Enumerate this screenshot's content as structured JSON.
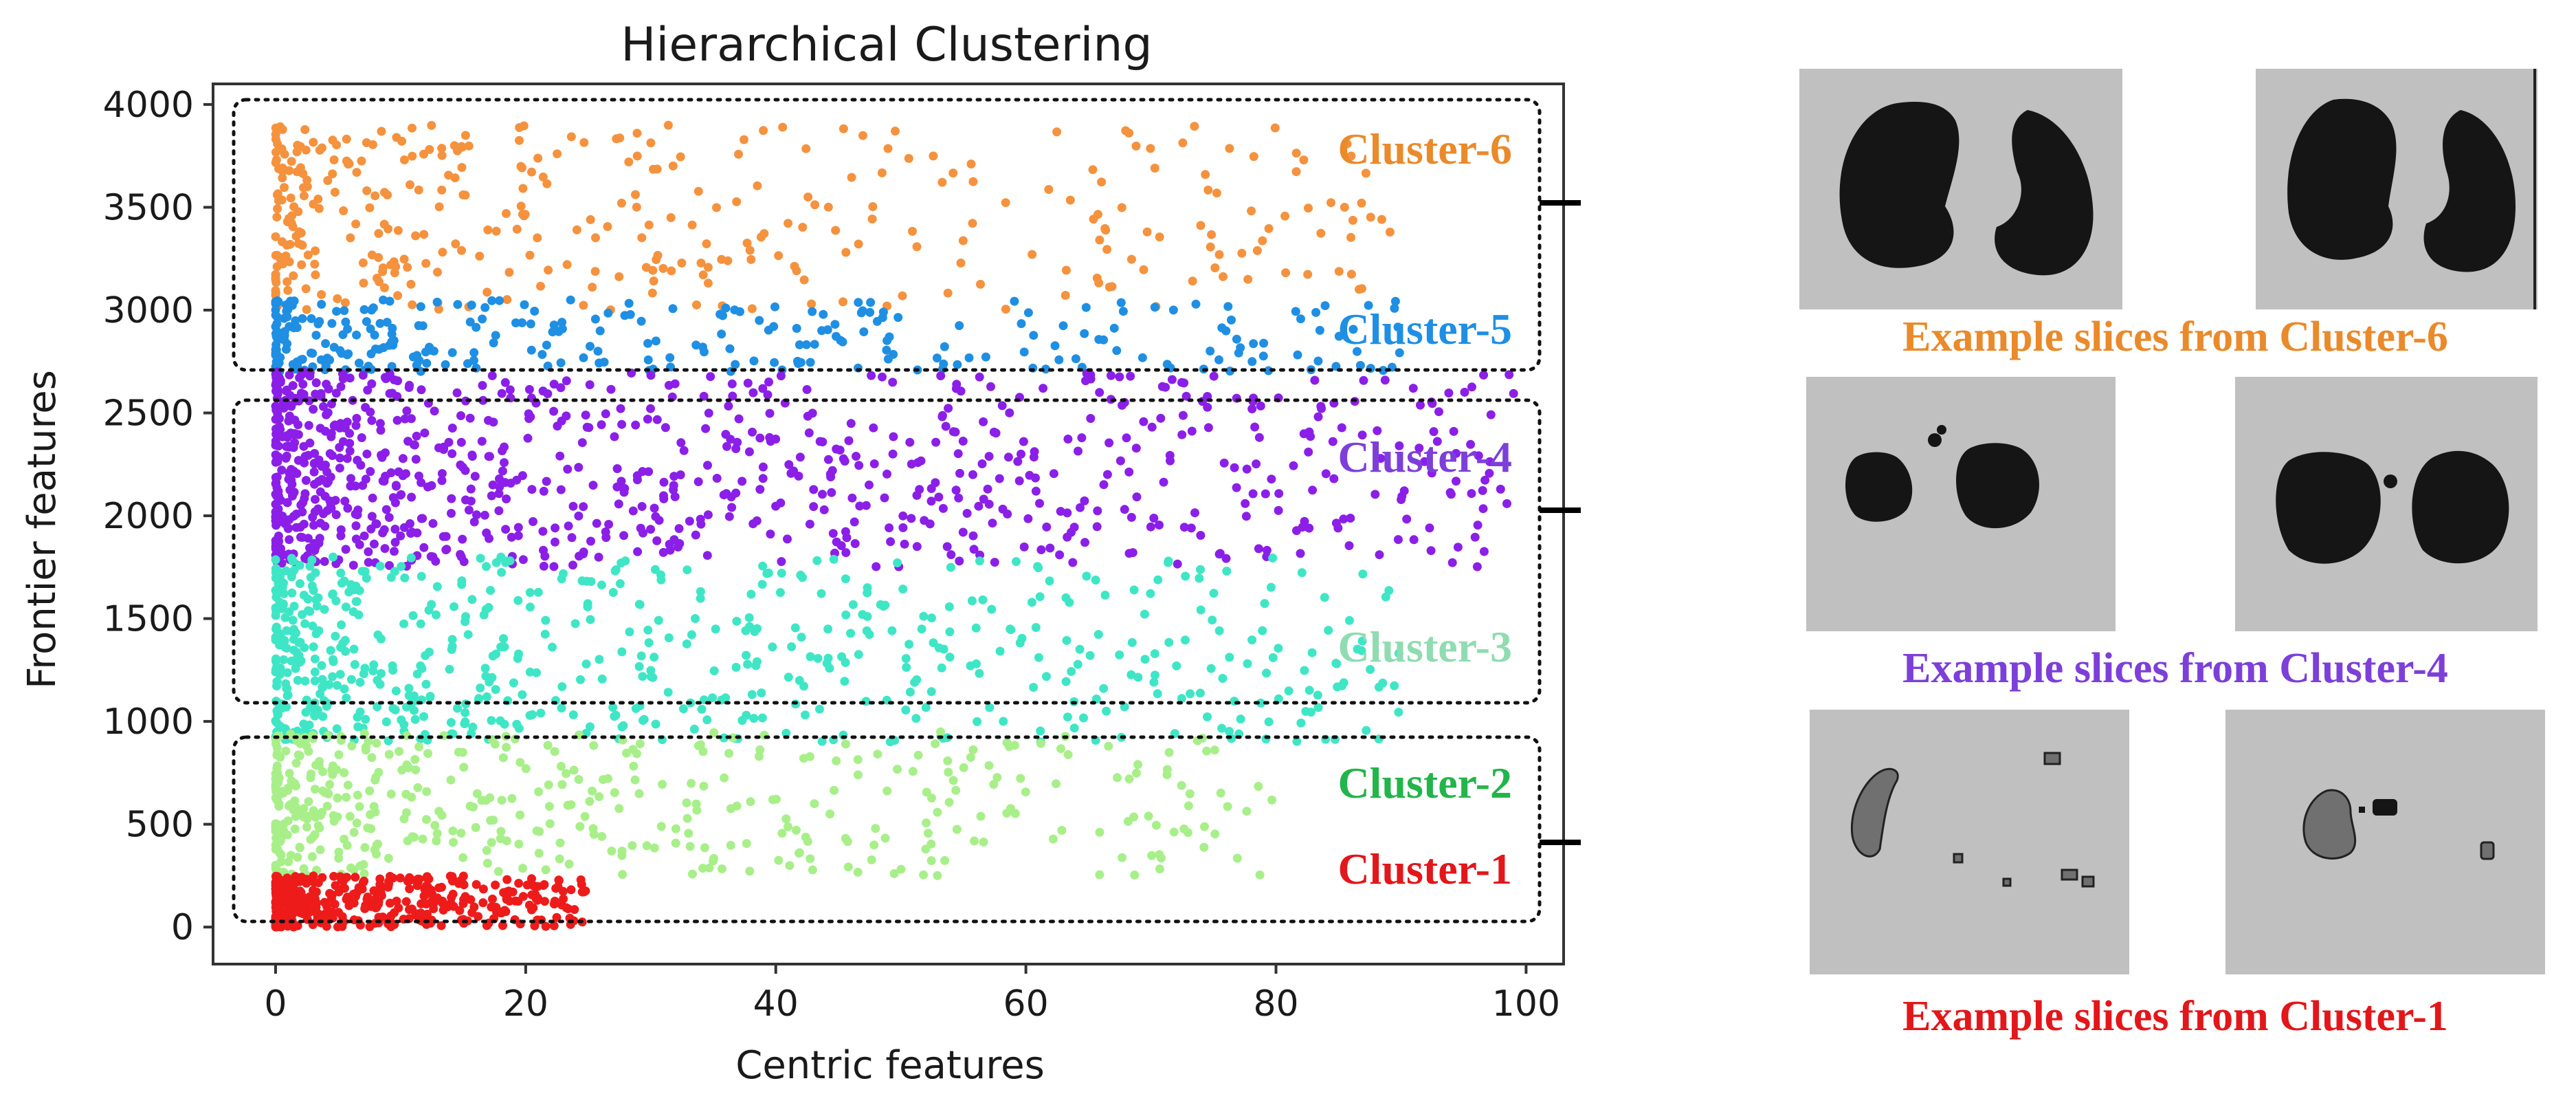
{
  "chart_data": {
    "type": "scatter",
    "title": "Hierarchical Clustering",
    "xlabel": "Centric features",
    "ylabel": "Frontier features",
    "xlim": [
      -5,
      103
    ],
    "ylim": [
      -180,
      4100
    ],
    "xticks": [
      0,
      20,
      40,
      60,
      80,
      100
    ],
    "yticks": [
      0,
      500,
      1000,
      1500,
      2000,
      2500,
      3000,
      3500,
      4000
    ],
    "series": [
      {
        "name": "Cluster-6",
        "color": "#f5923e",
        "y_range": [
          3000,
          3900
        ],
        "x_range": [
          0,
          90
        ],
        "count": 380,
        "density_x": 0.32
      },
      {
        "name": "Cluster-5",
        "color": "#1f8fe3",
        "y_range": [
          2700,
          3050
        ],
        "x_range": [
          0,
          90
        ],
        "count": 300,
        "density_x": 0.28
      },
      {
        "name": "Cluster-4",
        "color": "#8b1fe8",
        "y_range": [
          1750,
          2700
        ],
        "x_range": [
          0,
          99
        ],
        "count": 900,
        "density_x": 0.3
      },
      {
        "name": "Cluster-3",
        "color": "#3fe6c6",
        "y_range": [
          900,
          1800
        ],
        "x_range": [
          0,
          90
        ],
        "count": 650,
        "density_x": 0.25
      },
      {
        "name": "Cluster-2",
        "color": "#a8ef8a",
        "y_range": [
          250,
          950
        ],
        "x_range": [
          0,
          80
        ],
        "count": 450,
        "density_x": 0.2
      },
      {
        "name": "Cluster-1",
        "color": "#ee1b1b",
        "y_range": [
          0,
          250
        ],
        "x_range": [
          0,
          25
        ],
        "count": 450,
        "density_x": 0.55
      }
    ],
    "cluster_labels": [
      {
        "text": "Cluster-6",
        "color": "#ea8a2a"
      },
      {
        "text": "Cluster-5",
        "color": "#1f8fe3"
      },
      {
        "text": "Cluster-4",
        "color": "#7d3fd9"
      },
      {
        "text": "Cluster-3",
        "color": "#8fdcb0"
      },
      {
        "text": "Cluster-2",
        "color": "#22b54a"
      },
      {
        "text": "Cluster-1",
        "color": "#e3161a"
      }
    ]
  },
  "slices": {
    "captions": [
      {
        "text": "Example slices from Cluster-6",
        "color": "#ea8a2a"
      },
      {
        "text": "Example slices from Cluster-4",
        "color": "#7d3fd9"
      },
      {
        "text": "Example slices from Cluster-1",
        "color": "#e3161a"
      }
    ]
  }
}
